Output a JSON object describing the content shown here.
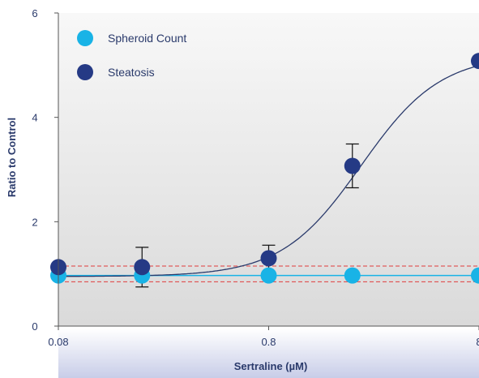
{
  "chart_data": {
    "type": "scatter",
    "xscale": "log",
    "xlabel": "Sertraline (µM)",
    "ylabel": "Ratio to Control",
    "xlim": [
      0.08,
      8
    ],
    "ylim": [
      0,
      6
    ],
    "x_tick_labels": [
      "0.08",
      "0.8",
      "8"
    ],
    "y_tick_labels": [
      "0",
      "2",
      "4",
      "6"
    ],
    "legend_position": "top-left",
    "series": [
      {
        "name": "Spheroid Count",
        "color": "#19b3e6",
        "x": [
          0.08,
          0.2,
          0.8,
          2,
          8
        ],
        "y": [
          0.97,
          0.97,
          0.97,
          0.97,
          0.97
        ]
      },
      {
        "name": "Steatosis",
        "color": "#253a85",
        "x": [
          0.08,
          0.2,
          0.8,
          2,
          8
        ],
        "y": [
          1.13,
          1.13,
          1.3,
          3.07,
          5.08
        ],
        "error": [
          null,
          0.38,
          0.25,
          0.42,
          null
        ]
      }
    ],
    "reference_lines_y": [
      1.15,
      0.85
    ],
    "reference_line_color": "#e03c3c",
    "fit_curve_color": "#2a3a6b",
    "fit_curve": {
      "bottom": 0.95,
      "top": 5.2,
      "ec50": 2.2,
      "hill": 2.3
    }
  }
}
